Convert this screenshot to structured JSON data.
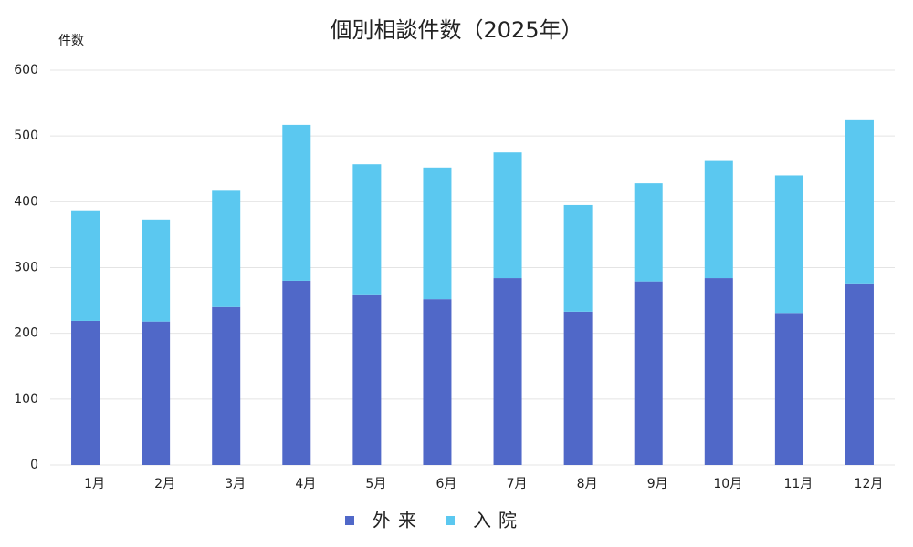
{
  "chart_data": {
    "type": "stacked_bar",
    "title": "個別相談件数（2025年）",
    "y_label": "件数",
    "categories": [
      "1月",
      "2月",
      "3月",
      "4月",
      "5月",
      "6月",
      "7月",
      "8月",
      "9月",
      "10月",
      "11月",
      "12月"
    ],
    "series": [
      {
        "name": "外来",
        "color": "#5068c8",
        "values": [
          219,
          218,
          240,
          280,
          258,
          252,
          284,
          233,
          279,
          284,
          231,
          276
        ]
      },
      {
        "name": "入院",
        "color": "#5bc8f0",
        "values": [
          168,
          155,
          178,
          237,
          199,
          200,
          191,
          162,
          149,
          178,
          209,
          248
        ]
      }
    ],
    "ylim": [
      0,
      600
    ],
    "yticks": [
      0,
      100,
      200,
      300,
      400,
      500,
      600
    ],
    "grid": true
  }
}
